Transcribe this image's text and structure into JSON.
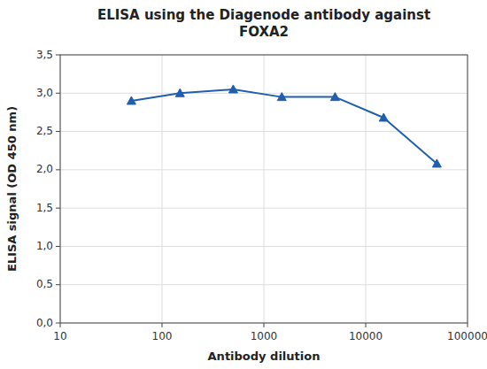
{
  "chart_data": {
    "type": "line",
    "title": "ELISA using the Diagenode antibody against\nFOXA2",
    "x_label": "Antibody dilution",
    "y_label": "ELISA signal (OD 450 nm)",
    "x": [
      50,
      150,
      500,
      1500,
      5000,
      15000,
      50000
    ],
    "values": [
      2.9,
      3.0,
      3.05,
      2.95,
      2.95,
      2.68,
      2.08
    ],
    "color": "#1F5FAD",
    "marker": "triangle",
    "log": "x",
    "grid": true,
    "xlim": [
      10,
      100000
    ],
    "ylim": [
      0,
      3.5
    ],
    "xticks": [
      10,
      100,
      1000,
      10000,
      100000
    ],
    "yticks": [
      {
        "value": 0.0,
        "label": "0,0"
      },
      {
        "value": 0.5,
        "label": "0,5"
      },
      {
        "value": 1.0,
        "label": "1,0"
      },
      {
        "value": 1.5,
        "label": "1,5"
      },
      {
        "value": 2.0,
        "label": "2,0"
      },
      {
        "value": 2.5,
        "label": "2,5"
      },
      {
        "value": 3.0,
        "label": "3,0"
      },
      {
        "value": 3.5,
        "label": "3,5"
      }
    ]
  }
}
